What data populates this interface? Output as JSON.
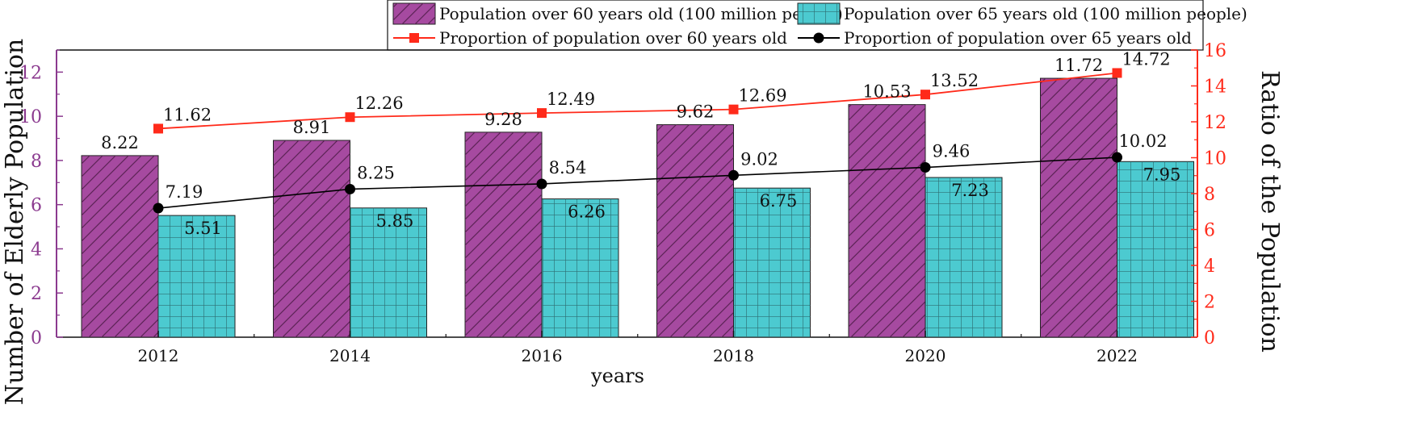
{
  "colors": {
    "bar60_fill": "#a64aa0",
    "bar60_hatch": "#5c2356",
    "bar65_fill": "#4ccad0",
    "bar65_hatch": "#2d6f73",
    "line60": "#ff2a1a",
    "line65": "#000000",
    "left_axis": "#8b3a8f",
    "right_axis": "#ff2a1a"
  },
  "chart_data": {
    "type": "bar",
    "title": "",
    "xlabel": "years",
    "ylabel": "Number of Elderly Population",
    "y2label": "Ratio of the Population",
    "categories": [
      "2012",
      "2014",
      "2016",
      "2018",
      "2020",
      "2022"
    ],
    "ylim": [
      0,
      13
    ],
    "yticks": [
      "0",
      "2",
      "4",
      "6",
      "8",
      "10",
      "12"
    ],
    "y2lim": [
      0,
      16
    ],
    "y2ticks": [
      "0",
      "2",
      "4",
      "6",
      "8",
      "10",
      "12",
      "14",
      "16"
    ],
    "legend_position": "top-right",
    "series": [
      {
        "name": "Population over 60 years old (100 million people)",
        "kind": "bar",
        "axis": "left",
        "values": [
          8.22,
          8.91,
          9.28,
          9.62,
          10.53,
          11.72
        ],
        "labels": [
          "8.22",
          "8.91",
          "9.28",
          "9.62",
          "10.53",
          "11.72"
        ]
      },
      {
        "name": "Population over 65 years old (100 million people)",
        "kind": "bar",
        "axis": "left",
        "values": [
          5.51,
          5.85,
          6.26,
          6.75,
          7.23,
          7.95
        ],
        "labels": [
          "5.51",
          "5.85",
          "6.26",
          "6.75",
          "7.23",
          "7.95"
        ]
      },
      {
        "name": "Proportion of population over 60 years old",
        "kind": "line",
        "axis": "right",
        "values": [
          11.62,
          12.26,
          12.49,
          12.69,
          13.52,
          14.72
        ],
        "labels": [
          "11.62",
          "12.26",
          "12.49",
          "12.69",
          "13.52",
          "14.72"
        ]
      },
      {
        "name": "Proportion of population over 65 years old",
        "kind": "line",
        "axis": "right",
        "values": [
          7.19,
          8.25,
          8.54,
          9.02,
          9.46,
          10.02
        ],
        "labels": [
          "7.19",
          "8.25",
          "8.54",
          "9.02",
          "9.46",
          "10.02"
        ]
      }
    ]
  }
}
